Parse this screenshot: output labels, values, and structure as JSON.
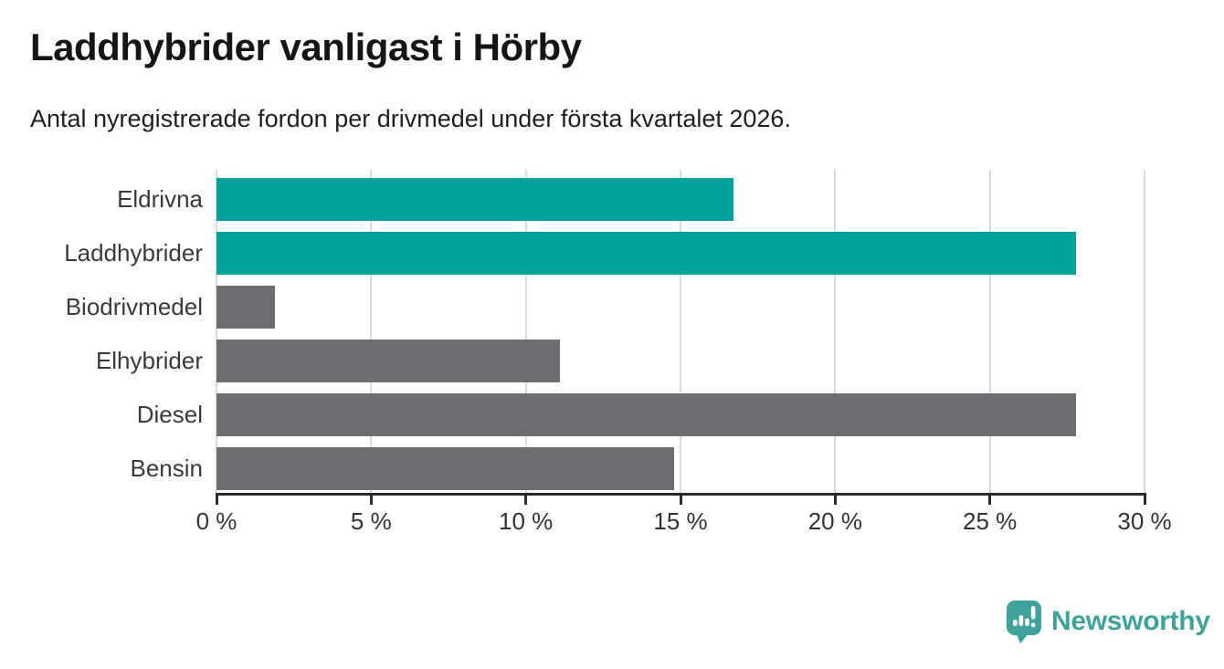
{
  "header": {
    "title": "Laddhybrider vanligast i Hörby",
    "subtitle": "Antal nyregistrerade fordon per drivmedel under första kvartalet 2026."
  },
  "chart_data": {
    "type": "bar",
    "orientation": "horizontal",
    "title": "Laddhybrider vanligast i Hörby",
    "subtitle": "Antal nyregistrerade fordon per drivmedel under första kvartalet 2026.",
    "categories": [
      "Eldrivna",
      "Laddhybrider",
      "Biodrivmedel",
      "Elhybrider",
      "Diesel",
      "Bensin"
    ],
    "values": [
      16.7,
      27.8,
      1.9,
      11.1,
      27.8,
      14.8
    ],
    "unit": "%",
    "bar_colors": [
      "#00a39b",
      "#00a39b",
      "#6e6d72",
      "#6e6d72",
      "#6e6d72",
      "#6e6d72"
    ],
    "highlight_color": "#00a39b",
    "default_color": "#6e6d72",
    "xlabel": "",
    "ylabel": "",
    "xlim": [
      0,
      30
    ],
    "x_ticks": [
      0,
      5,
      10,
      15,
      20,
      25,
      30
    ],
    "x_tick_labels": [
      "0 %",
      "5 %",
      "10 %",
      "15 %",
      "20 %",
      "25 %",
      "30 %"
    ],
    "grid": "vertical",
    "legend": "none"
  },
  "footer": {
    "brand": "Newsworthy",
    "brand_color": "#3fa29b",
    "icon": "newsworthy-speech-bubble-bar-chart-icon"
  }
}
